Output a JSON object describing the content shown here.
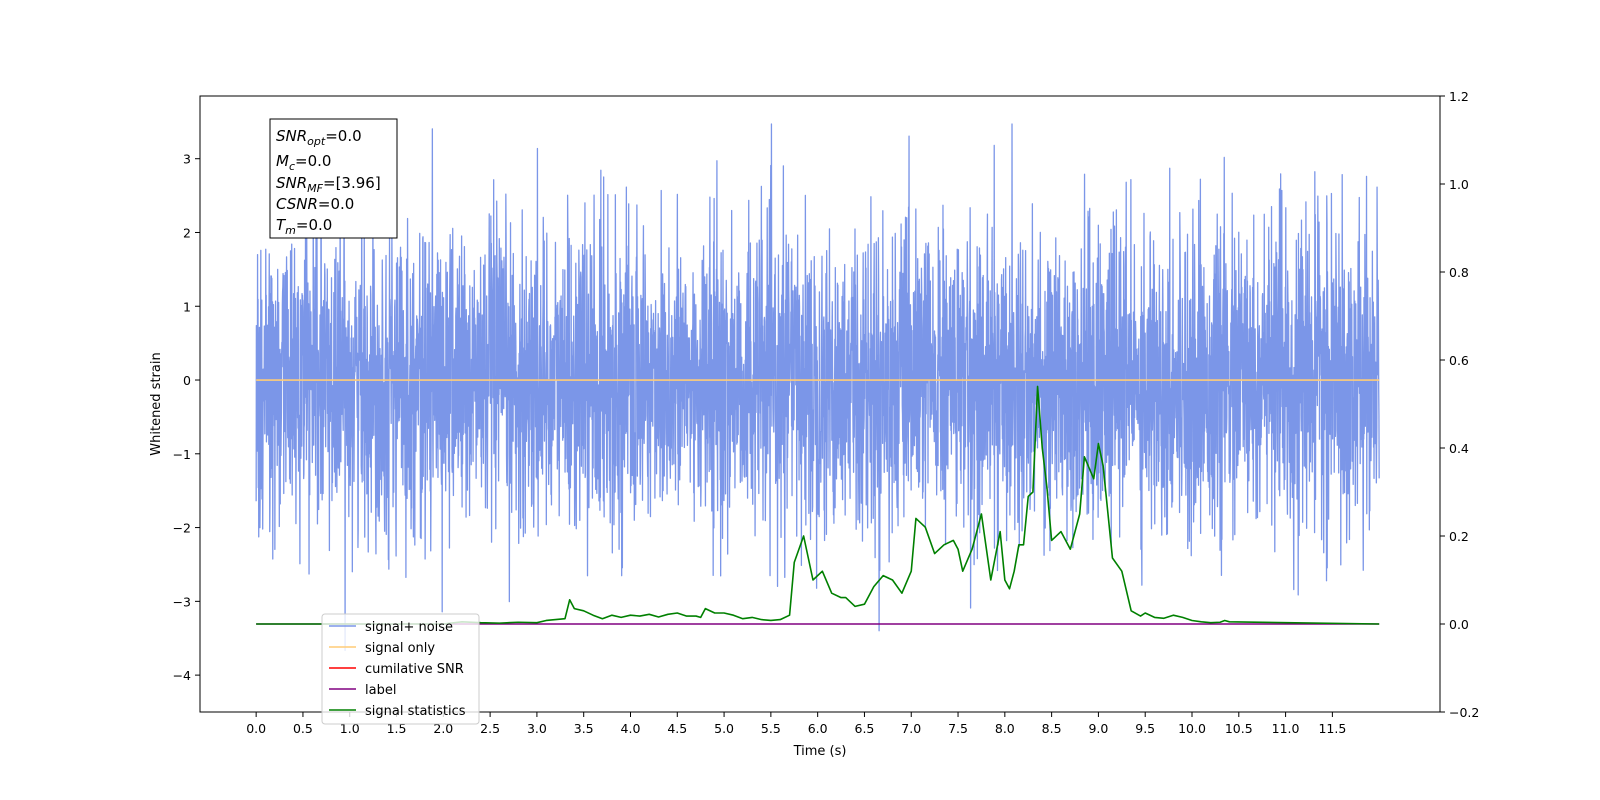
{
  "chart_data": {
    "type": "line",
    "xlabel": "Time (s)",
    "ylabel": "Whitened strain",
    "xlim": [
      -0.6,
      12.65
    ],
    "ylim": [
      -4.5,
      3.85
    ],
    "ylim_right": [
      -0.2,
      1.2
    ],
    "x_ticks": [
      "0.0",
      "0.5",
      "1.0",
      "1.5",
      "2.0",
      "2.5",
      "3.0",
      "3.5",
      "4.0",
      "4.5",
      "5.0",
      "5.5",
      "6.0",
      "6.5",
      "7.0",
      "7.5",
      "8.0",
      "8.5",
      "9.0",
      "9.5",
      "10.0",
      "10.5",
      "11.0",
      "11.5"
    ],
    "y_ticks": [
      "3",
      "2",
      "1",
      "0",
      "−1",
      "−2",
      "−3",
      "−4"
    ],
    "y_ticks_right": [
      "1.2",
      "1.0",
      "0.8",
      "0.6",
      "0.4",
      "0.2",
      "0.0",
      "−0.2"
    ],
    "grid": false,
    "legend_position": "lower-left",
    "annotation": {
      "snr_opt": {
        "name": "SNR",
        "sub": "opt",
        "value": "=0.0"
      },
      "mc": {
        "name": "M",
        "sub": "c",
        "value": "=0.0"
      },
      "snr_mf": {
        "name": "SNR",
        "sub": "MF",
        "value": "=[3.96]"
      },
      "csnr": {
        "name": "CSNR",
        "value": "=0.0"
      },
      "tm": {
        "name": "T",
        "sub": "m",
        "value": "=0.0"
      }
    },
    "series": [
      {
        "name": "signal+ noise",
        "axis": "left",
        "color": "#7b96e8",
        "kind": "noise",
        "x_range": [
          0.0,
          12.0
        ],
        "y_range": [
          -4.1,
          3.47
        ]
      },
      {
        "name": "signal only",
        "axis": "left",
        "color": "#ffcc77",
        "x": [
          0.0,
          12.0
        ],
        "y": [
          0.0,
          0.0
        ]
      },
      {
        "name": "cumilative SNR",
        "axis": "right",
        "color": "#ff0000",
        "x": [],
        "y": []
      },
      {
        "name": "label",
        "axis": "right",
        "color": "#800080",
        "x": [
          0.0,
          12.0
        ],
        "y": [
          0.0,
          0.0
        ]
      },
      {
        "name": "signal statistics",
        "axis": "right",
        "color": "#008000",
        "x": [
          0.0,
          1.0,
          2.0,
          2.2,
          2.4,
          2.6,
          2.8,
          3.0,
          3.1,
          3.2,
          3.3,
          3.35,
          3.4,
          3.5,
          3.6,
          3.7,
          3.8,
          3.9,
          4.0,
          4.1,
          4.2,
          4.3,
          4.4,
          4.5,
          4.6,
          4.7,
          4.75,
          4.8,
          4.9,
          5.0,
          5.1,
          5.2,
          5.3,
          5.4,
          5.5,
          5.6,
          5.7,
          5.75,
          5.85,
          5.95,
          6.05,
          6.15,
          6.25,
          6.3,
          6.4,
          6.5,
          6.6,
          6.7,
          6.8,
          6.9,
          7.0,
          7.05,
          7.15,
          7.25,
          7.35,
          7.45,
          7.5,
          7.55,
          7.65,
          7.75,
          7.85,
          7.95,
          8.0,
          8.05,
          8.1,
          8.15,
          8.2,
          8.25,
          8.3,
          8.35,
          8.4,
          8.45,
          8.5,
          8.6,
          8.7,
          8.8,
          8.85,
          8.95,
          9.0,
          9.05,
          9.15,
          9.25,
          9.35,
          9.45,
          9.5,
          9.6,
          9.7,
          9.8,
          9.9,
          10.0,
          10.1,
          10.2,
          10.3,
          10.35,
          10.4,
          12.0
        ],
        "y": [
          0.0,
          0.0,
          0.0,
          0.005,
          0.003,
          0.002,
          0.004,
          0.003,
          0.008,
          0.01,
          0.012,
          0.055,
          0.035,
          0.03,
          0.02,
          0.012,
          0.02,
          0.015,
          0.02,
          0.018,
          0.022,
          0.016,
          0.022,
          0.025,
          0.018,
          0.018,
          0.015,
          0.035,
          0.025,
          0.025,
          0.02,
          0.012,
          0.015,
          0.01,
          0.008,
          0.01,
          0.02,
          0.14,
          0.2,
          0.1,
          0.12,
          0.07,
          0.06,
          0.06,
          0.04,
          0.045,
          0.085,
          0.11,
          0.1,
          0.07,
          0.12,
          0.24,
          0.22,
          0.16,
          0.18,
          0.19,
          0.17,
          0.12,
          0.17,
          0.25,
          0.1,
          0.21,
          0.1,
          0.08,
          0.12,
          0.18,
          0.18,
          0.29,
          0.3,
          0.54,
          0.4,
          0.31,
          0.19,
          0.21,
          0.17,
          0.25,
          0.38,
          0.33,
          0.41,
          0.36,
          0.15,
          0.12,
          0.03,
          0.018,
          0.025,
          0.015,
          0.013,
          0.02,
          0.015,
          0.008,
          0.005,
          0.003,
          0.004,
          0.008,
          0.005,
          0.0
        ]
      }
    ]
  }
}
